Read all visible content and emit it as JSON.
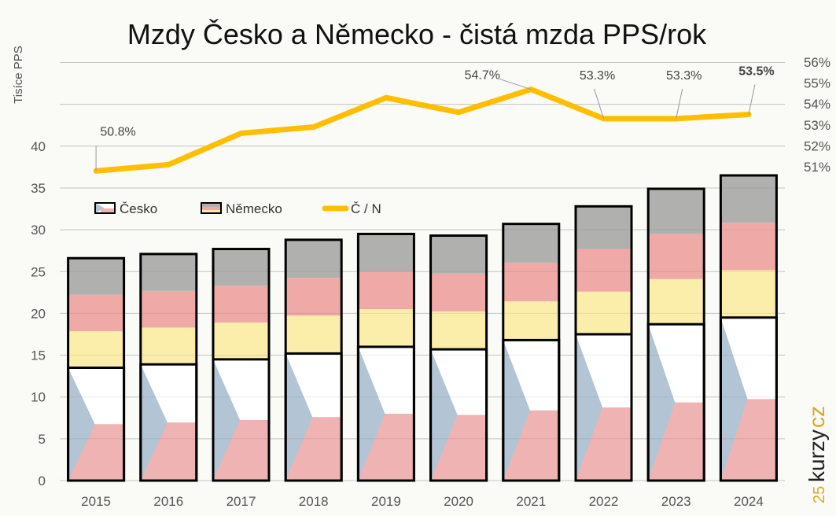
{
  "chart_data": {
    "type": "bar",
    "title": "Mzdy Česko a Německo - čistá mzda PPS/rok",
    "ylabel": "Tisíce PPS",
    "ylim": [
      0,
      50
    ],
    "y_ticks": [
      "0",
      "5",
      "10",
      "15",
      "20",
      "25",
      "30",
      "35",
      "40"
    ],
    "y2lim": [
      49,
      56
    ],
    "y2_ticks": [
      "51%",
      "52%",
      "53%",
      "54%",
      "55%",
      "56%"
    ],
    "grid": true,
    "legend_position": "top-left inside",
    "categories": [
      "2015",
      "2016",
      "2017",
      "2018",
      "2019",
      "2020",
      "2021",
      "2022",
      "2023",
      "2024"
    ],
    "series": [
      {
        "name": "Česko",
        "type": "bar",
        "values": [
          13.5,
          13.9,
          14.5,
          15.2,
          16.0,
          15.7,
          16.8,
          17.5,
          18.7,
          19.5
        ]
      },
      {
        "name": "Německo",
        "type": "bar",
        "values": [
          26.6,
          27.1,
          27.7,
          28.8,
          29.5,
          29.3,
          30.7,
          32.8,
          34.9,
          36.5
        ]
      },
      {
        "name": "Č / N",
        "type": "line",
        "axis": "right",
        "unit": "%",
        "values": [
          50.8,
          51.1,
          52.6,
          52.9,
          54.3,
          53.6,
          54.7,
          53.3,
          53.3,
          53.5
        ]
      }
    ],
    "annotations": [
      {
        "year": "2015",
        "text": "50.8%"
      },
      {
        "year": "2021",
        "text": "54.7%"
      },
      {
        "year": "2022",
        "text": "53.3%"
      },
      {
        "year": "2023",
        "text": "53.3%"
      },
      {
        "year": "2024",
        "text": "53.5%",
        "bold": true
      }
    ],
    "colors": {
      "line": "#ffbf00",
      "cz_blue": "#b3c4d4",
      "cz_red": "#efb3b3",
      "cz_white": "#ffffff",
      "de_black": "#b0b0ae",
      "de_red": "#efaaa8",
      "de_gold": "#fbedaa",
      "outline": "#000000"
    }
  },
  "logo": {
    "text": "25 LET KURZY.CZ"
  }
}
